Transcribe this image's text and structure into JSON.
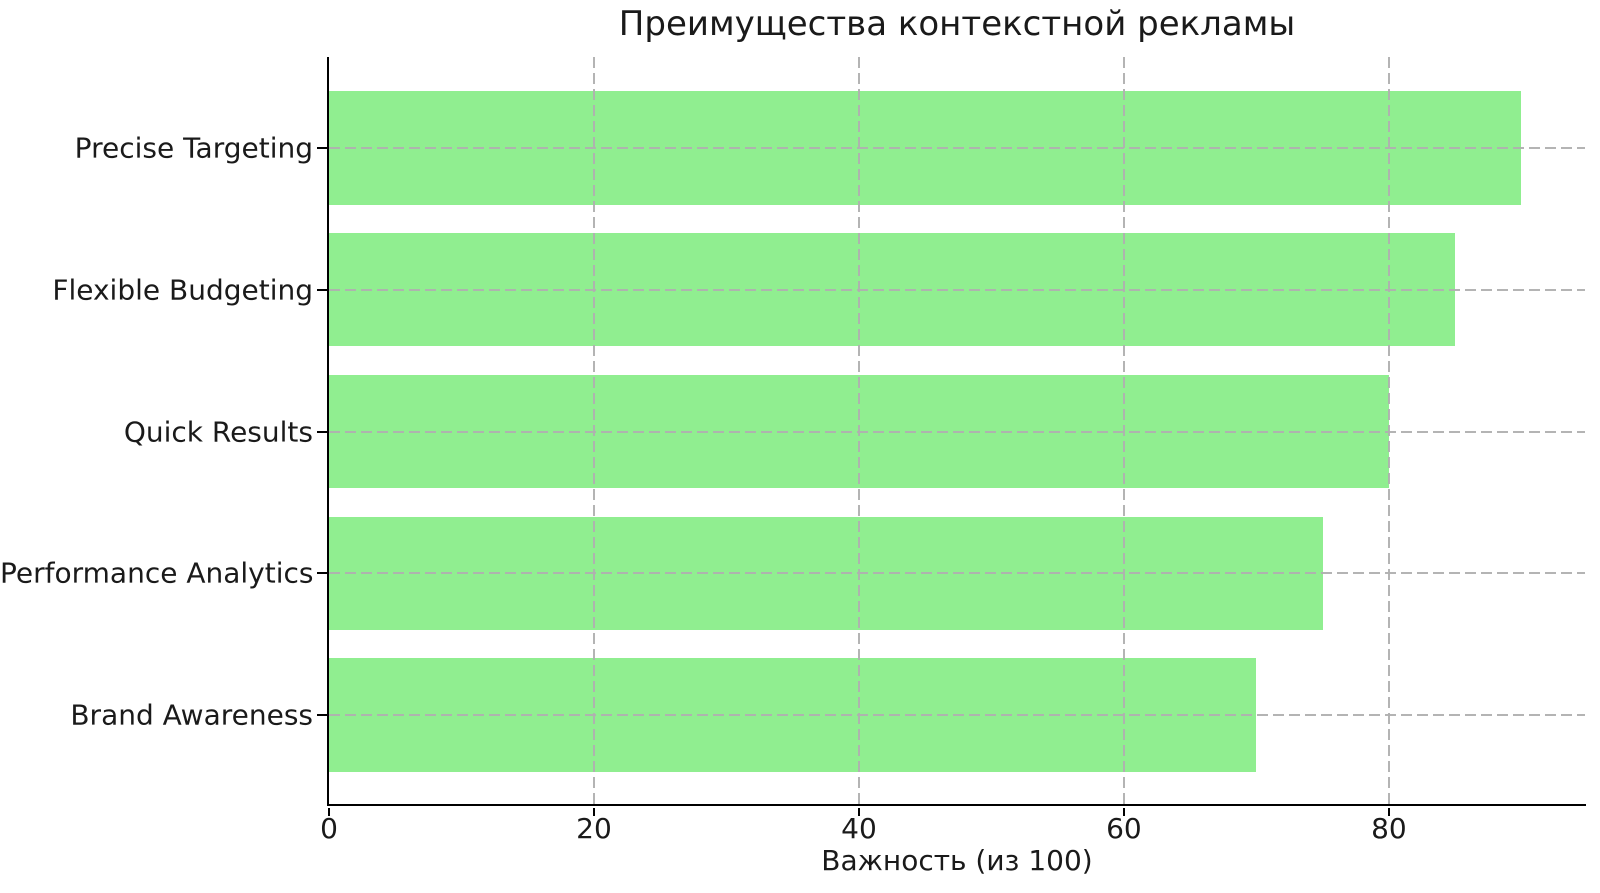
{
  "chart_data": {
    "type": "bar",
    "orientation": "horizontal",
    "title": "Преимущества контекстной рекламы",
    "xlabel": "Важность (из 100)",
    "ylabel": "",
    "categories": [
      "Precise Targeting",
      "Flexible Budgeting",
      "Quick Results",
      "Performance Analytics",
      "Brand Awareness"
    ],
    "values": [
      90,
      85,
      80,
      75,
      70
    ],
    "xticks": [
      0,
      20,
      40,
      60,
      80
    ],
    "xlim": [
      0,
      94.8
    ],
    "grid": true,
    "grid_style": "dashed",
    "legend": "none",
    "bar_color": "#90EE90",
    "grid_color": "#b0b0b0",
    "axis_color": "#000000",
    "text_color": "#1a1a1a",
    "background_color": "#ffffff"
  }
}
